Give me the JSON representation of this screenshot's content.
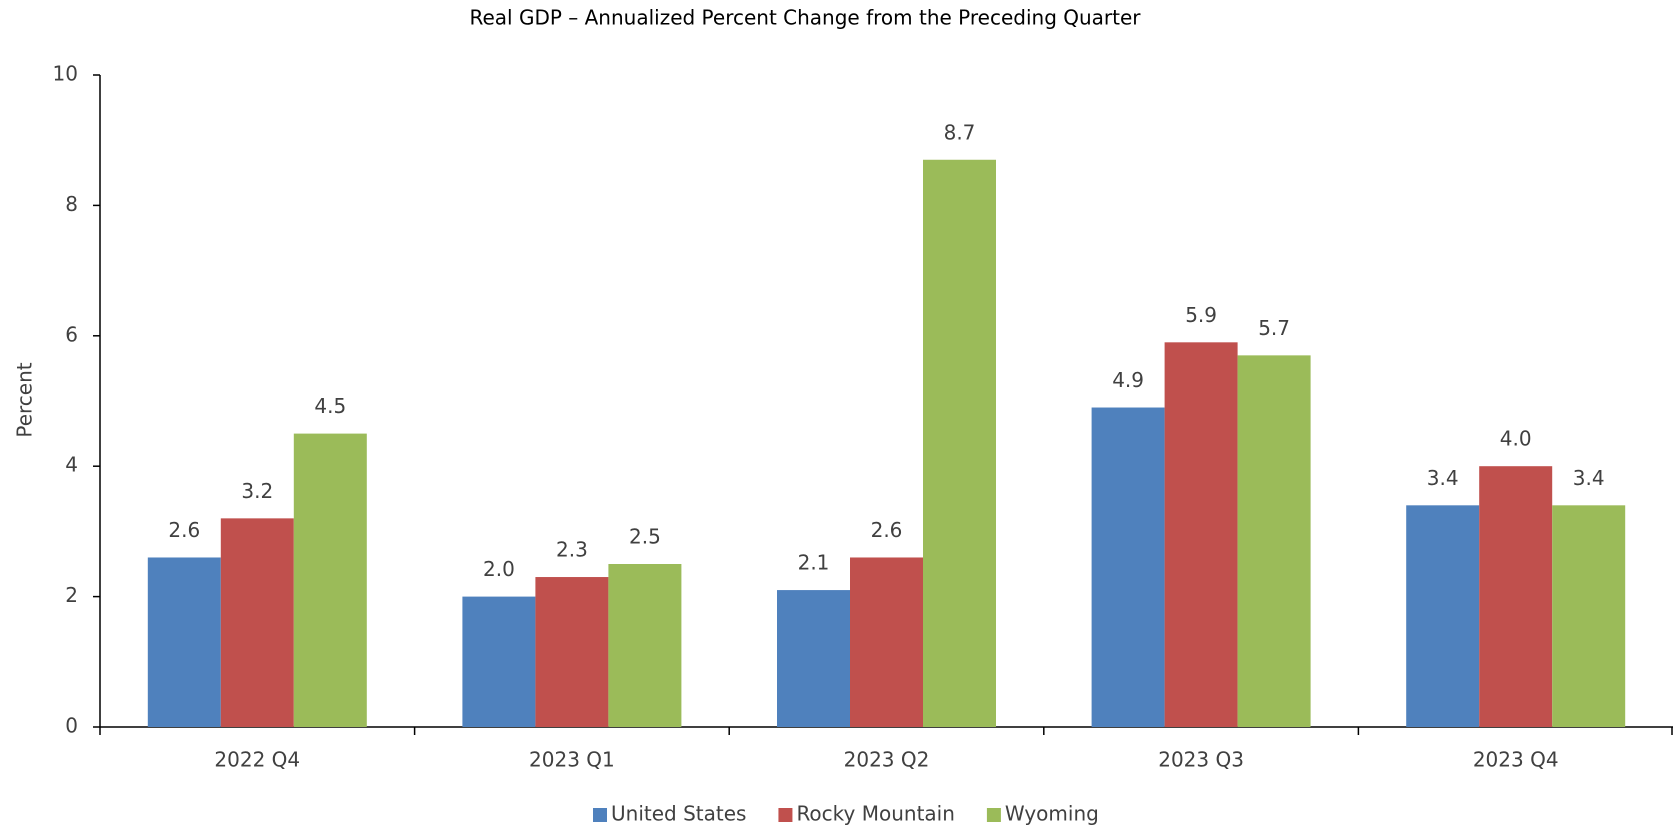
{
  "chart_data": {
    "type": "bar",
    "title": "Real GDP – Annualized Percent Change from the Preceding Quarter",
    "y_label": "Percent",
    "categories": [
      "2022 Q4",
      "2023 Q1",
      "2023 Q2",
      "2023 Q3",
      "2023 Q4"
    ],
    "series": [
      {
        "name": "United States",
        "color": "#4f81bd",
        "values": [
          2.6,
          2.0,
          2.1,
          4.9,
          3.4
        ],
        "value_labels": [
          "2.6",
          "2.0",
          "2.1",
          "4.9",
          "3.4"
        ]
      },
      {
        "name": "Rocky Mountain",
        "color": "#c0504d",
        "values": [
          3.2,
          2.3,
          2.6,
          5.9,
          4.0
        ],
        "value_labels": [
          "3.2",
          "2.3",
          "2.6",
          "5.9",
          "4.0"
        ]
      },
      {
        "name": "Wyoming",
        "color": "#9bbb59",
        "values": [
          4.5,
          2.5,
          8.7,
          5.7,
          3.4
        ],
        "value_labels": [
          "4.5",
          "2.5",
          "8.7",
          "5.7",
          "3.4"
        ]
      }
    ],
    "ylim": [
      0,
      10
    ],
    "yticks": [
      0,
      2,
      4,
      6,
      8,
      10
    ],
    "grid": false,
    "legend": "bottom"
  }
}
